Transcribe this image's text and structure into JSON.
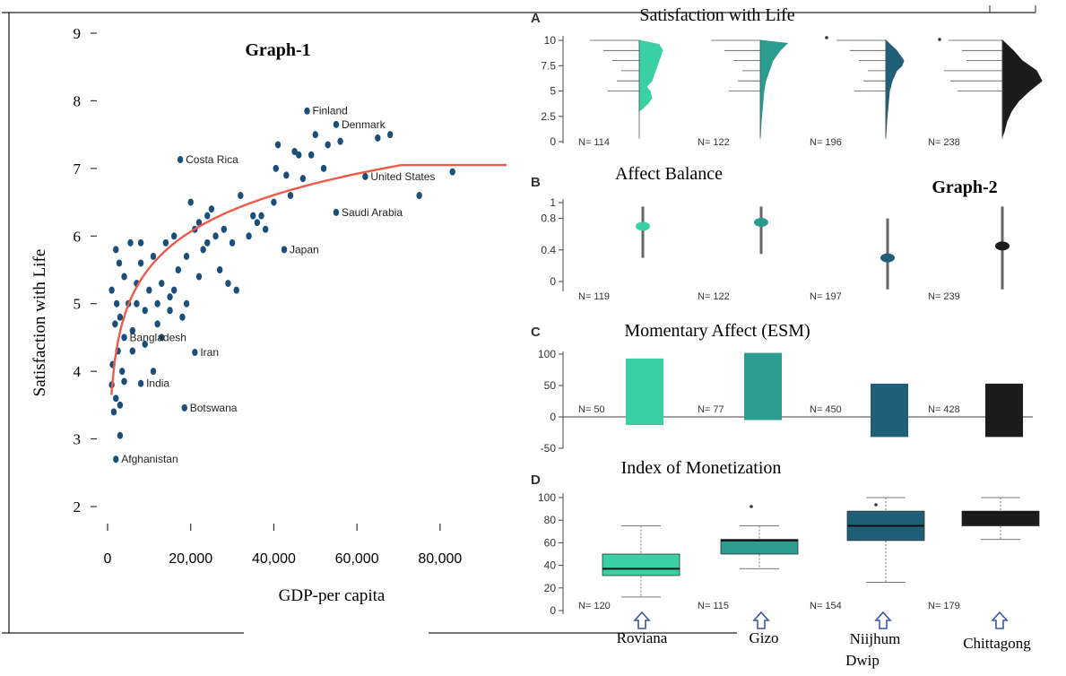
{
  "colors": {
    "dot": "#1b4f7a",
    "curve": "#ef5a4a",
    "roviana": "#3ad0a4",
    "gizo": "#2a9d8f",
    "niijhum": "#1f5f78",
    "chittagong": "#1c1c1c",
    "arrow": "#3a57a8"
  },
  "chart_data": [
    {
      "type": "scatter",
      "title": "Graph-1",
      "xlabel": "GDP-per capita",
      "ylabel": "Satisfaction with Life",
      "xlim": [
        -2000,
        95000
      ],
      "ylim": [
        1.7,
        9.3
      ],
      "x_ticks": [
        "0",
        "20,000",
        "40,000",
        "60,000",
        "80,000"
      ],
      "x_tick_values": [
        0,
        20000,
        40000,
        60000,
        80000
      ],
      "y_ticks": [
        "2",
        "3",
        "4",
        "5",
        "6",
        "7",
        "8",
        "9"
      ],
      "y_tick_values": [
        2,
        3,
        4,
        5,
        6,
        7,
        8,
        9
      ],
      "labeled_countries": [
        {
          "name": "Finland",
          "x": 48000,
          "y": 7.85
        },
        {
          "name": "Denmark",
          "x": 55000,
          "y": 7.65
        },
        {
          "name": "Costa Rica",
          "x": 17500,
          "y": 7.13
        },
        {
          "name": "United States",
          "x": 62000,
          "y": 6.88
        },
        {
          "name": "Saudi Arabia",
          "x": 55000,
          "y": 6.35
        },
        {
          "name": "Japan",
          "x": 42500,
          "y": 5.8
        },
        {
          "name": "Bangladesh",
          "x": 4000,
          "y": 4.5
        },
        {
          "name": "Iran",
          "x": 21000,
          "y": 4.28
        },
        {
          "name": "India",
          "x": 8000,
          "y": 3.82
        },
        {
          "name": "Botswana",
          "x": 18500,
          "y": 3.46
        },
        {
          "name": "Afghanistan",
          "x": 2000,
          "y": 2.7
        }
      ],
      "points": [
        [
          1000,
          3.8
        ],
        [
          1500,
          3.4
        ],
        [
          2000,
          3.6
        ],
        [
          3000,
          3.5
        ],
        [
          1200,
          4.1
        ],
        [
          2500,
          4.3
        ],
        [
          3500,
          4.0
        ],
        [
          1800,
          4.7
        ],
        [
          2200,
          5.0
        ],
        [
          3000,
          4.8
        ],
        [
          1000,
          5.2
        ],
        [
          2800,
          5.6
        ],
        [
          2000,
          5.8
        ],
        [
          4000,
          5.4
        ],
        [
          5000,
          5.0
        ],
        [
          6000,
          4.6
        ],
        [
          5500,
          5.9
        ],
        [
          7000,
          5.3
        ],
        [
          8000,
          5.6
        ],
        [
          9000,
          4.9
        ],
        [
          10000,
          5.2
        ],
        [
          11000,
          5.7
        ],
        [
          12000,
          4.7
        ],
        [
          13000,
          5.3
        ],
        [
          14000,
          5.9
        ],
        [
          15000,
          5.1
        ],
        [
          16000,
          6.0
        ],
        [
          17000,
          5.5
        ],
        [
          18000,
          4.8
        ],
        [
          19000,
          5.7
        ],
        [
          20000,
          6.5
        ],
        [
          21000,
          6.1
        ],
        [
          22000,
          5.4
        ],
        [
          23000,
          5.8
        ],
        [
          24000,
          6.3
        ],
        [
          25000,
          6.4
        ],
        [
          26000,
          6.0
        ],
        [
          27000,
          5.5
        ],
        [
          28000,
          6.1
        ],
        [
          30000,
          5.9
        ],
        [
          32000,
          6.6
        ],
        [
          34000,
          6.0
        ],
        [
          35000,
          6.3
        ],
        [
          37000,
          6.3
        ],
        [
          40000,
          6.5
        ],
        [
          40500,
          7.0
        ],
        [
          41000,
          7.35
        ],
        [
          43000,
          6.9
        ],
        [
          44000,
          6.6
        ],
        [
          46000,
          7.2
        ],
        [
          47000,
          6.85
        ],
        [
          49000,
          7.2
        ],
        [
          52000,
          7.0
        ],
        [
          53000,
          7.35
        ],
        [
          56000,
          7.4
        ],
        [
          65000,
          7.45
        ],
        [
          68000,
          7.5
        ],
        [
          75000,
          6.6
        ],
        [
          83000,
          6.95
        ],
        [
          3000,
          3.05
        ],
        [
          4000,
          3.85
        ],
        [
          6000,
          4.3
        ],
        [
          9000,
          4.4
        ],
        [
          11000,
          4.0
        ],
        [
          13000,
          4.5
        ],
        [
          15000,
          4.9
        ],
        [
          8000,
          5.9
        ],
        [
          7000,
          5.0
        ],
        [
          12000,
          5.0
        ],
        [
          16000,
          5.2
        ],
        [
          19000,
          5.0
        ],
        [
          22000,
          6.2
        ],
        [
          24000,
          5.9
        ],
        [
          29000,
          5.3
        ],
        [
          31000,
          5.2
        ],
        [
          36000,
          6.2
        ],
        [
          38000,
          6.1
        ],
        [
          45000,
          7.25
        ],
        [
          50000,
          7.5
        ]
      ],
      "fit_curve": "logarithmic"
    },
    {
      "type": "bar",
      "title": "Graph-2",
      "categories": [
        "Roviana",
        "Gizo",
        "Niijhum Dwip",
        "Chittagong"
      ],
      "panels": [
        {
          "letter": "A",
          "title": "Satisfaction with Life",
          "type": "violin",
          "ylim": [
            0,
            10
          ],
          "y_ticks": [
            "0",
            "2.5",
            "5",
            "7.5",
            "10"
          ],
          "n": [
            "N= 114",
            "N= 122",
            "N= 196",
            "N= 238"
          ]
        },
        {
          "letter": "B",
          "title": "Affect Balance",
          "type": "point-range",
          "ylim": [
            -0.1,
            1.05
          ],
          "y_ticks": [
            "0",
            "0.4",
            "0.8",
            "1"
          ],
          "means": [
            0.7,
            0.75,
            0.3,
            0.45
          ],
          "ranges": [
            [
              0.3,
              0.95
            ],
            [
              0.35,
              0.95
            ],
            [
              -0.1,
              0.8
            ],
            [
              -0.1,
              0.95
            ]
          ],
          "n": [
            "N= 119",
            "N= 122",
            "N= 197",
            "N= 239"
          ]
        },
        {
          "letter": "C",
          "title": "Momentary Affect (ESM)",
          "type": "bar",
          "ylim": [
            -50,
            100
          ],
          "y_ticks": [
            "-50",
            "0",
            "50",
            "100"
          ],
          "tops": [
            93,
            102,
            53,
            53
          ],
          "bottoms": [
            -13,
            -5,
            -32,
            -32
          ],
          "n": [
            "N= 50",
            "N= 77",
            "N= 450",
            "N= 428"
          ]
        },
        {
          "letter": "D",
          "title": "Index of Monetization",
          "type": "box",
          "ylim": [
            0,
            100
          ],
          "y_ticks": [
            "0",
            "20",
            "40",
            "60",
            "80",
            "100"
          ],
          "boxes": [
            {
              "min": 12,
              "q1": 31,
              "median": 37,
              "q3": 50,
              "max": 75
            },
            {
              "min": 37,
              "q1": 50,
              "median": 62,
              "q3": 63,
              "max": 75
            },
            {
              "min": 25,
              "q1": 62,
              "median": 75,
              "q3": 88,
              "max": 100
            },
            {
              "min": 63,
              "q1": 75,
              "median": 87,
              "q3": 88,
              "max": 100
            }
          ],
          "n": [
            "N= 120",
            "N= 115",
            "N= 154",
            "N= 179"
          ]
        }
      ],
      "site_labels": [
        "Roviana",
        "Gizo",
        "Niijhum",
        "Dwip",
        "Chittagong"
      ]
    }
  ]
}
